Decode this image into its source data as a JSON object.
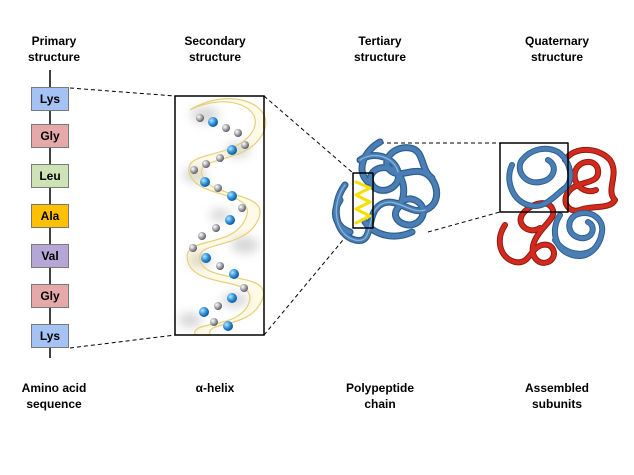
{
  "stages": {
    "primary": {
      "title_1": "Primary",
      "title_2": "structure",
      "caption_1": "Amino acid",
      "caption_2": "sequence"
    },
    "secondary": {
      "title_1": "Secondary",
      "title_2": "structure",
      "caption_1": "α-helix"
    },
    "tertiary": {
      "title_1": "Tertiary",
      "title_2": "structure",
      "caption_1": "Polypeptide",
      "caption_2": "chain"
    },
    "quaternary": {
      "title_1": "Quaternary",
      "title_2": "structure",
      "caption_1": "Assembled",
      "caption_2": "subunits"
    }
  },
  "amino_acids": [
    {
      "label": "Lys",
      "color": "#a4c2f4"
    },
    {
      "label": "Gly",
      "color": "#e6a9a9"
    },
    {
      "label": "Leu",
      "color": "#cde3b5"
    },
    {
      "label": "Ala",
      "color": "#ffc000"
    },
    {
      "label": "Val",
      "color": "#b4a7d6"
    },
    {
      "label": "Gly",
      "color": "#e6a9a9"
    },
    {
      "label": "Lys",
      "color": "#a4c2f4"
    }
  ],
  "colors": {
    "chain_blue": "#4a7fb5",
    "chain_red": "#d42a1e",
    "helix_yellow": "#f5e000",
    "helix_atom_blue": "#2a8fd8",
    "helix_atom_gray": "#a0a0a8"
  }
}
